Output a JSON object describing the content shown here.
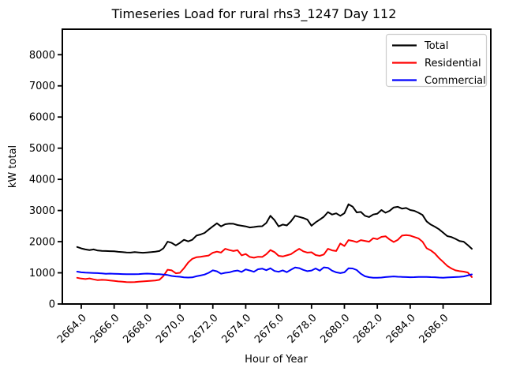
{
  "figure": {
    "background": "#ffffff"
  },
  "chart_data": {
    "type": "line",
    "title": "Timeseries Load for rural rhs3_1247  Day 112",
    "xlabel": "Hour of Year",
    "ylabel": "kW total",
    "xlim": [
      2662.85,
      2688.9
    ],
    "ylim": [
      0,
      8818
    ],
    "grid": false,
    "legend_position": "upper right",
    "legend_entries": [
      "Total",
      "Residential",
      "Commercial"
    ],
    "xticks": {
      "values": [
        2664,
        2666,
        2668,
        2670,
        2672,
        2674,
        2676,
        2678,
        2680,
        2682,
        2684,
        2686
      ],
      "labels": [
        "2664.0",
        "2666.0",
        "2668.0",
        "2670.0",
        "2672.0",
        "2674.0",
        "2676.0",
        "2678.0",
        "2680.0",
        "2682.0",
        "2684.0",
        "2686.0"
      ]
    },
    "yticks": {
      "values": [
        0,
        1000,
        2000,
        3000,
        4000,
        5000,
        6000,
        7000,
        8000
      ],
      "labels": [
        "0",
        "1000",
        "2000",
        "3000",
        "4000",
        "5000",
        "6000",
        "7000",
        "8000"
      ]
    },
    "x": [
      2663.75,
      2664.0,
      2664.25,
      2664.5,
      2664.75,
      2665.0,
      2665.25,
      2665.5,
      2665.75,
      2666.0,
      2666.25,
      2666.5,
      2666.75,
      2667.0,
      2667.25,
      2667.5,
      2667.75,
      2668.0,
      2668.25,
      2668.5,
      2668.75,
      2669.0,
      2669.25,
      2669.5,
      2669.75,
      2670.0,
      2670.25,
      2670.5,
      2670.75,
      2671.0,
      2671.25,
      2671.5,
      2671.75,
      2672.0,
      2672.25,
      2672.5,
      2672.75,
      2673.0,
      2673.25,
      2673.5,
      2673.75,
      2674.0,
      2674.25,
      2674.5,
      2674.75,
      2675.0,
      2675.25,
      2675.5,
      2675.75,
      2676.0,
      2676.25,
      2676.5,
      2676.75,
      2677.0,
      2677.25,
      2677.5,
      2677.75,
      2678.0,
      2678.25,
      2678.5,
      2678.75,
      2679.0,
      2679.25,
      2679.5,
      2679.75,
      2680.0,
      2680.25,
      2680.5,
      2680.75,
      2681.0,
      2681.25,
      2681.5,
      2681.75,
      2682.0,
      2682.25,
      2682.5,
      2682.75,
      2683.0,
      2683.25,
      2683.5,
      2683.75,
      2684.0,
      2684.25,
      2684.5,
      2684.75,
      2685.0,
      2685.25,
      2685.5,
      2685.75,
      2686.0,
      2686.25,
      2686.5,
      2686.75,
      2687.0,
      2687.25,
      2687.5,
      2687.75
    ],
    "series": [
      {
        "name": "Total",
        "color": "#000000",
        "values": [
          1830,
          1785,
          1750,
          1730,
          1750,
          1715,
          1705,
          1700,
          1695,
          1690,
          1675,
          1665,
          1655,
          1650,
          1665,
          1655,
          1645,
          1655,
          1665,
          1680,
          1700,
          1790,
          2000,
          1960,
          1880,
          1960,
          2060,
          2010,
          2060,
          2195,
          2230,
          2280,
          2390,
          2490,
          2590,
          2490,
          2560,
          2580,
          2575,
          2535,
          2510,
          2490,
          2455,
          2470,
          2490,
          2495,
          2600,
          2830,
          2690,
          2490,
          2550,
          2520,
          2650,
          2830,
          2795,
          2760,
          2705,
          2510,
          2620,
          2705,
          2800,
          2950,
          2870,
          2910,
          2830,
          2915,
          3200,
          3125,
          2940,
          2955,
          2830,
          2790,
          2870,
          2900,
          3015,
          2930,
          2990,
          3100,
          3120,
          3060,
          3080,
          3015,
          2990,
          2930,
          2855,
          2650,
          2550,
          2480,
          2400,
          2290,
          2180,
          2150,
          2090,
          2020,
          2000,
          1890,
          1770
        ]
      },
      {
        "name": "Residential",
        "color": "#ff0000",
        "values": [
          840,
          815,
          800,
          820,
          790,
          765,
          775,
          770,
          755,
          740,
          725,
          715,
          705,
          700,
          705,
          715,
          725,
          735,
          745,
          755,
          775,
          900,
          1100,
          1080,
          985,
          1000,
          1150,
          1330,
          1450,
          1500,
          1515,
          1535,
          1555,
          1645,
          1680,
          1650,
          1770,
          1730,
          1700,
          1725,
          1560,
          1605,
          1510,
          1485,
          1515,
          1510,
          1600,
          1730,
          1665,
          1545,
          1525,
          1560,
          1600,
          1690,
          1770,
          1690,
          1650,
          1660,
          1570,
          1545,
          1590,
          1770,
          1720,
          1700,
          1940,
          1860,
          2050,
          2025,
          1985,
          2050,
          2025,
          2000,
          2110,
          2080,
          2155,
          2175,
          2070,
          1990,
          2060,
          2195,
          2210,
          2195,
          2150,
          2105,
          2000,
          1790,
          1720,
          1620,
          1475,
          1350,
          1225,
          1140,
          1080,
          1055,
          1040,
          1010,
          865
        ]
      },
      {
        "name": "Commercial",
        "color": "#0000ff",
        "values": [
          1040,
          1015,
          1005,
          1000,
          995,
          990,
          980,
          970,
          975,
          970,
          965,
          960,
          958,
          955,
          958,
          960,
          968,
          975,
          968,
          960,
          958,
          945,
          930,
          900,
          885,
          875,
          855,
          850,
          855,
          890,
          915,
          945,
          1000,
          1080,
          1050,
          970,
          1000,
          1015,
          1055,
          1075,
          1030,
          1110,
          1075,
          1035,
          1115,
          1135,
          1085,
          1145,
          1060,
          1035,
          1080,
          1020,
          1100,
          1170,
          1150,
          1095,
          1055,
          1075,
          1140,
          1070,
          1175,
          1160,
          1070,
          1015,
          990,
          1015,
          1145,
          1140,
          1090,
          970,
          890,
          860,
          845,
          845,
          848,
          865,
          875,
          885,
          875,
          870,
          865,
          860,
          862,
          868,
          870,
          868,
          862,
          858,
          850,
          845,
          852,
          860,
          865,
          872,
          885,
          915,
          950
        ]
      }
    ]
  }
}
